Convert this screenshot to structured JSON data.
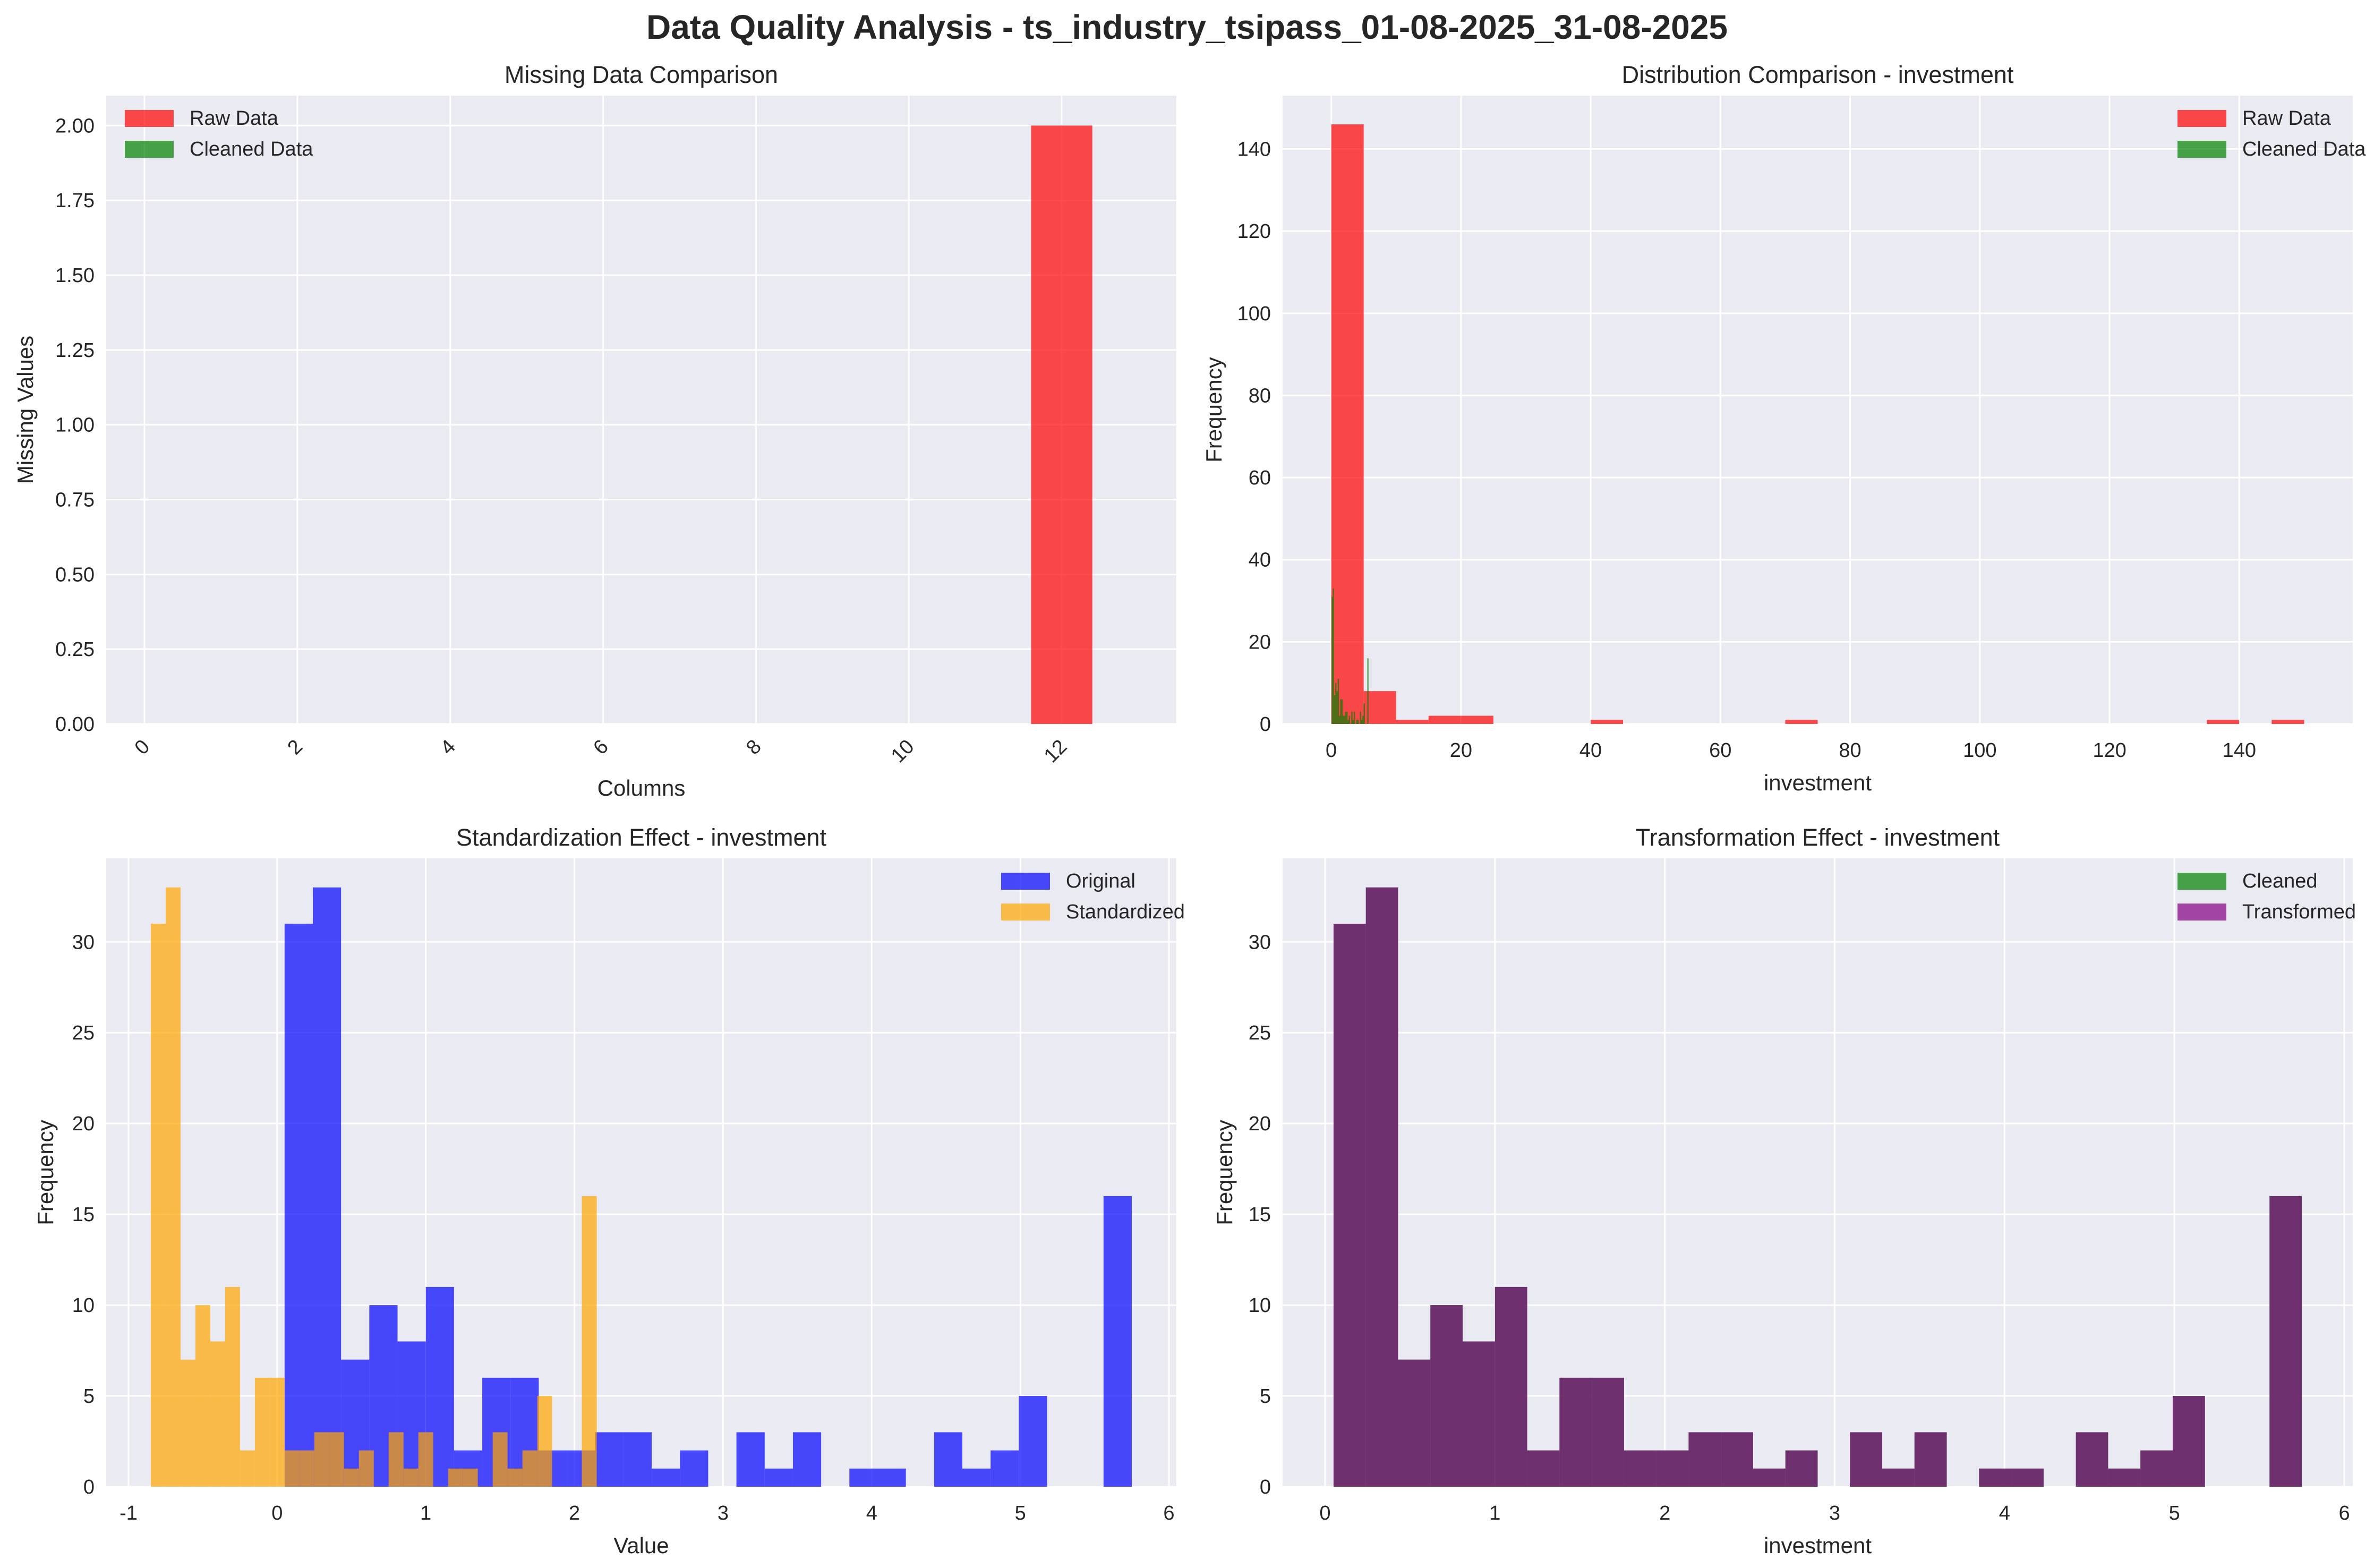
{
  "figure": {
    "suptitle": "Data Quality Analysis - ts_industry_tsipass_01-08-2025_31-08-2025"
  },
  "colors": {
    "raw": "#ff0000",
    "cleaned": "#008000",
    "original": "#0000ff",
    "standardized": "#ffa500",
    "transformed": "#800080",
    "background": "#eaeaf2",
    "grid": "#ffffff"
  },
  "chart_data": [
    {
      "type": "bar",
      "title": "Missing Data Comparison",
      "xlabel": "Columns",
      "ylabel": "Missing Values",
      "xlim": [
        -0.5,
        13.5
      ],
      "ylim": [
        0,
        2.1
      ],
      "xticks": [
        0,
        2,
        4,
        6,
        8,
        10,
        12
      ],
      "xtick_labels": [
        "0",
        "2",
        "4",
        "6",
        "8",
        "10",
        "12"
      ],
      "xtick_rotation": 45,
      "yticks": [
        0,
        0.25,
        0.5,
        0.75,
        1.0,
        1.25,
        1.5,
        1.75,
        2.0
      ],
      "ytick_labels": [
        "0.00",
        "0.25",
        "0.50",
        "0.75",
        "1.00",
        "1.25",
        "1.50",
        "1.75",
        "2.00"
      ],
      "categories": [
        0,
        1,
        2,
        3,
        4,
        5,
        6,
        7,
        8,
        9,
        10,
        11,
        12
      ],
      "bar_width": 0.8,
      "grid": true,
      "legend_position": "top-left",
      "series": [
        {
          "name": "Raw Data",
          "color": "#ff0000",
          "alpha": 0.7,
          "values": [
            0,
            0,
            0,
            0,
            0,
            0,
            0,
            0,
            0,
            0,
            0,
            0,
            2
          ]
        },
        {
          "name": "Cleaned Data",
          "color": "#008000",
          "alpha": 0.7,
          "values": [
            0,
            0,
            0,
            0,
            0,
            0,
            0,
            0,
            0,
            0,
            0,
            0,
            0
          ]
        }
      ]
    },
    {
      "type": "histogram",
      "title": "Distribution Comparison - investment",
      "xlabel": "investment",
      "ylabel": "Frequency",
      "xlim": [
        -7.5,
        157.5
      ],
      "ylim": [
        0,
        153
      ],
      "xticks": [
        0,
        20,
        40,
        60,
        80,
        100,
        120,
        140
      ],
      "yticks": [
        0,
        20,
        40,
        60,
        80,
        100,
        120,
        140
      ],
      "grid": true,
      "legend_position": "top-right",
      "series": [
        {
          "name": "Raw Data",
          "color": "#ff0000",
          "alpha": 0.7,
          "edges": [
            0,
            5,
            10,
            15,
            20,
            25,
            30,
            35,
            40,
            45,
            50,
            55,
            60,
            65,
            70,
            75,
            80,
            85,
            90,
            95,
            100,
            105,
            110,
            115,
            120,
            125,
            130,
            135,
            140,
            145,
            150
          ],
          "counts": [
            146,
            8,
            1,
            2,
            2,
            0,
            0,
            0,
            1,
            0,
            0,
            0,
            0,
            0,
            1,
            0,
            0,
            0,
            0,
            0,
            0,
            0,
            0,
            0,
            0,
            0,
            0,
            1,
            0,
            1
          ]
        },
        {
          "name": "Cleaned Data",
          "color": "#008000",
          "alpha": 0.7,
          "edges": [
            0.05,
            0.24,
            0.43,
            0.62,
            0.81,
            1.0,
            1.19,
            1.38,
            1.57,
            1.76,
            1.95,
            2.14,
            2.33,
            2.52,
            2.71,
            2.9,
            3.09,
            3.28,
            3.47,
            3.66,
            3.85,
            4.04,
            4.23,
            4.42,
            4.61,
            4.8,
            4.99,
            5.18,
            5.37,
            5.56,
            5.75
          ],
          "counts": [
            31,
            33,
            7,
            10,
            8,
            11,
            2,
            6,
            6,
            2,
            2,
            3,
            3,
            1,
            2,
            0,
            3,
            1,
            3,
            0,
            1,
            1,
            0,
            3,
            1,
            2,
            5,
            0,
            0,
            16
          ]
        }
      ]
    },
    {
      "type": "histogram",
      "title": "Standardization Effect - investment",
      "xlabel": "Value",
      "ylabel": "Frequency",
      "xlim": [
        -1.15,
        6.05
      ],
      "ylim": [
        0,
        34.6
      ],
      "xticks": [
        -1,
        0,
        1,
        2,
        3,
        4,
        5,
        6
      ],
      "yticks": [
        0,
        5,
        10,
        15,
        20,
        25,
        30
      ],
      "grid": true,
      "legend_position": "top-right",
      "series": [
        {
          "name": "Original",
          "color": "#0000ff",
          "alpha": 0.7,
          "edges": [
            0.05,
            0.24,
            0.43,
            0.62,
            0.81,
            1.0,
            1.19,
            1.38,
            1.57,
            1.76,
            1.95,
            2.14,
            2.33,
            2.52,
            2.71,
            2.9,
            3.09,
            3.28,
            3.47,
            3.66,
            3.85,
            4.04,
            4.23,
            4.42,
            4.61,
            4.8,
            4.99,
            5.18,
            5.37,
            5.56,
            5.75
          ],
          "counts": [
            31,
            33,
            7,
            10,
            8,
            11,
            2,
            6,
            6,
            2,
            2,
            3,
            3,
            1,
            2,
            0,
            3,
            1,
            3,
            0,
            1,
            1,
            0,
            3,
            1,
            2,
            5,
            0,
            0,
            16
          ]
        },
        {
          "name": "Standardized",
          "color": "#ffa500",
          "alpha": 0.7,
          "edges": [
            -0.85,
            -0.75,
            -0.65,
            -0.55,
            -0.45,
            -0.35,
            -0.25,
            -0.15,
            -0.05,
            0.05,
            0.15,
            0.25,
            0.35,
            0.45,
            0.55,
            0.65,
            0.75,
            0.85,
            0.95,
            1.05,
            1.15,
            1.25,
            1.35,
            1.45,
            1.55,
            1.65,
            1.75,
            1.85,
            1.95,
            2.05,
            2.15
          ],
          "counts": [
            31,
            33,
            7,
            10,
            8,
            11,
            2,
            6,
            6,
            2,
            2,
            3,
            3,
            1,
            2,
            0,
            3,
            1,
            3,
            0,
            1,
            1,
            0,
            3,
            1,
            2,
            5,
            0,
            0,
            16
          ]
        }
      ]
    },
    {
      "type": "histogram",
      "title": "Transformation Effect - investment",
      "xlabel": "investment",
      "ylabel": "Frequency",
      "xlim": [
        -0.25,
        6.05
      ],
      "ylim": [
        0,
        34.6
      ],
      "xticks": [
        0,
        1,
        2,
        3,
        4,
        5,
        6
      ],
      "yticks": [
        0,
        5,
        10,
        15,
        20,
        25,
        30
      ],
      "grid": true,
      "legend_position": "top-right",
      "series": [
        {
          "name": "Cleaned",
          "color": "#008000",
          "alpha": 0.7,
          "edges": [
            0.05,
            0.24,
            0.43,
            0.62,
            0.81,
            1.0,
            1.19,
            1.38,
            1.57,
            1.76,
            1.95,
            2.14,
            2.33,
            2.52,
            2.71,
            2.9,
            3.09,
            3.28,
            3.47,
            3.66,
            3.85,
            4.04,
            4.23,
            4.42,
            4.61,
            4.8,
            4.99,
            5.18,
            5.37,
            5.56,
            5.75
          ],
          "counts": [
            31,
            33,
            7,
            10,
            8,
            11,
            2,
            6,
            6,
            2,
            2,
            3,
            3,
            1,
            2,
            0,
            3,
            1,
            3,
            0,
            1,
            1,
            0,
            3,
            1,
            2,
            5,
            0,
            0,
            16
          ]
        },
        {
          "name": "Transformed",
          "color": "#800080",
          "alpha": 0.7,
          "edges": [
            0.05,
            0.24,
            0.43,
            0.62,
            0.81,
            1.0,
            1.19,
            1.38,
            1.57,
            1.76,
            1.95,
            2.14,
            2.33,
            2.52,
            2.71,
            2.9,
            3.09,
            3.28,
            3.47,
            3.66,
            3.85,
            4.04,
            4.23,
            4.42,
            4.61,
            4.8,
            4.99,
            5.18,
            5.37,
            5.56,
            5.75
          ],
          "counts": [
            31,
            33,
            7,
            10,
            8,
            11,
            2,
            6,
            6,
            2,
            2,
            3,
            3,
            1,
            2,
            0,
            3,
            1,
            3,
            0,
            1,
            1,
            0,
            3,
            1,
            2,
            5,
            0,
            0,
            16
          ]
        }
      ]
    }
  ]
}
